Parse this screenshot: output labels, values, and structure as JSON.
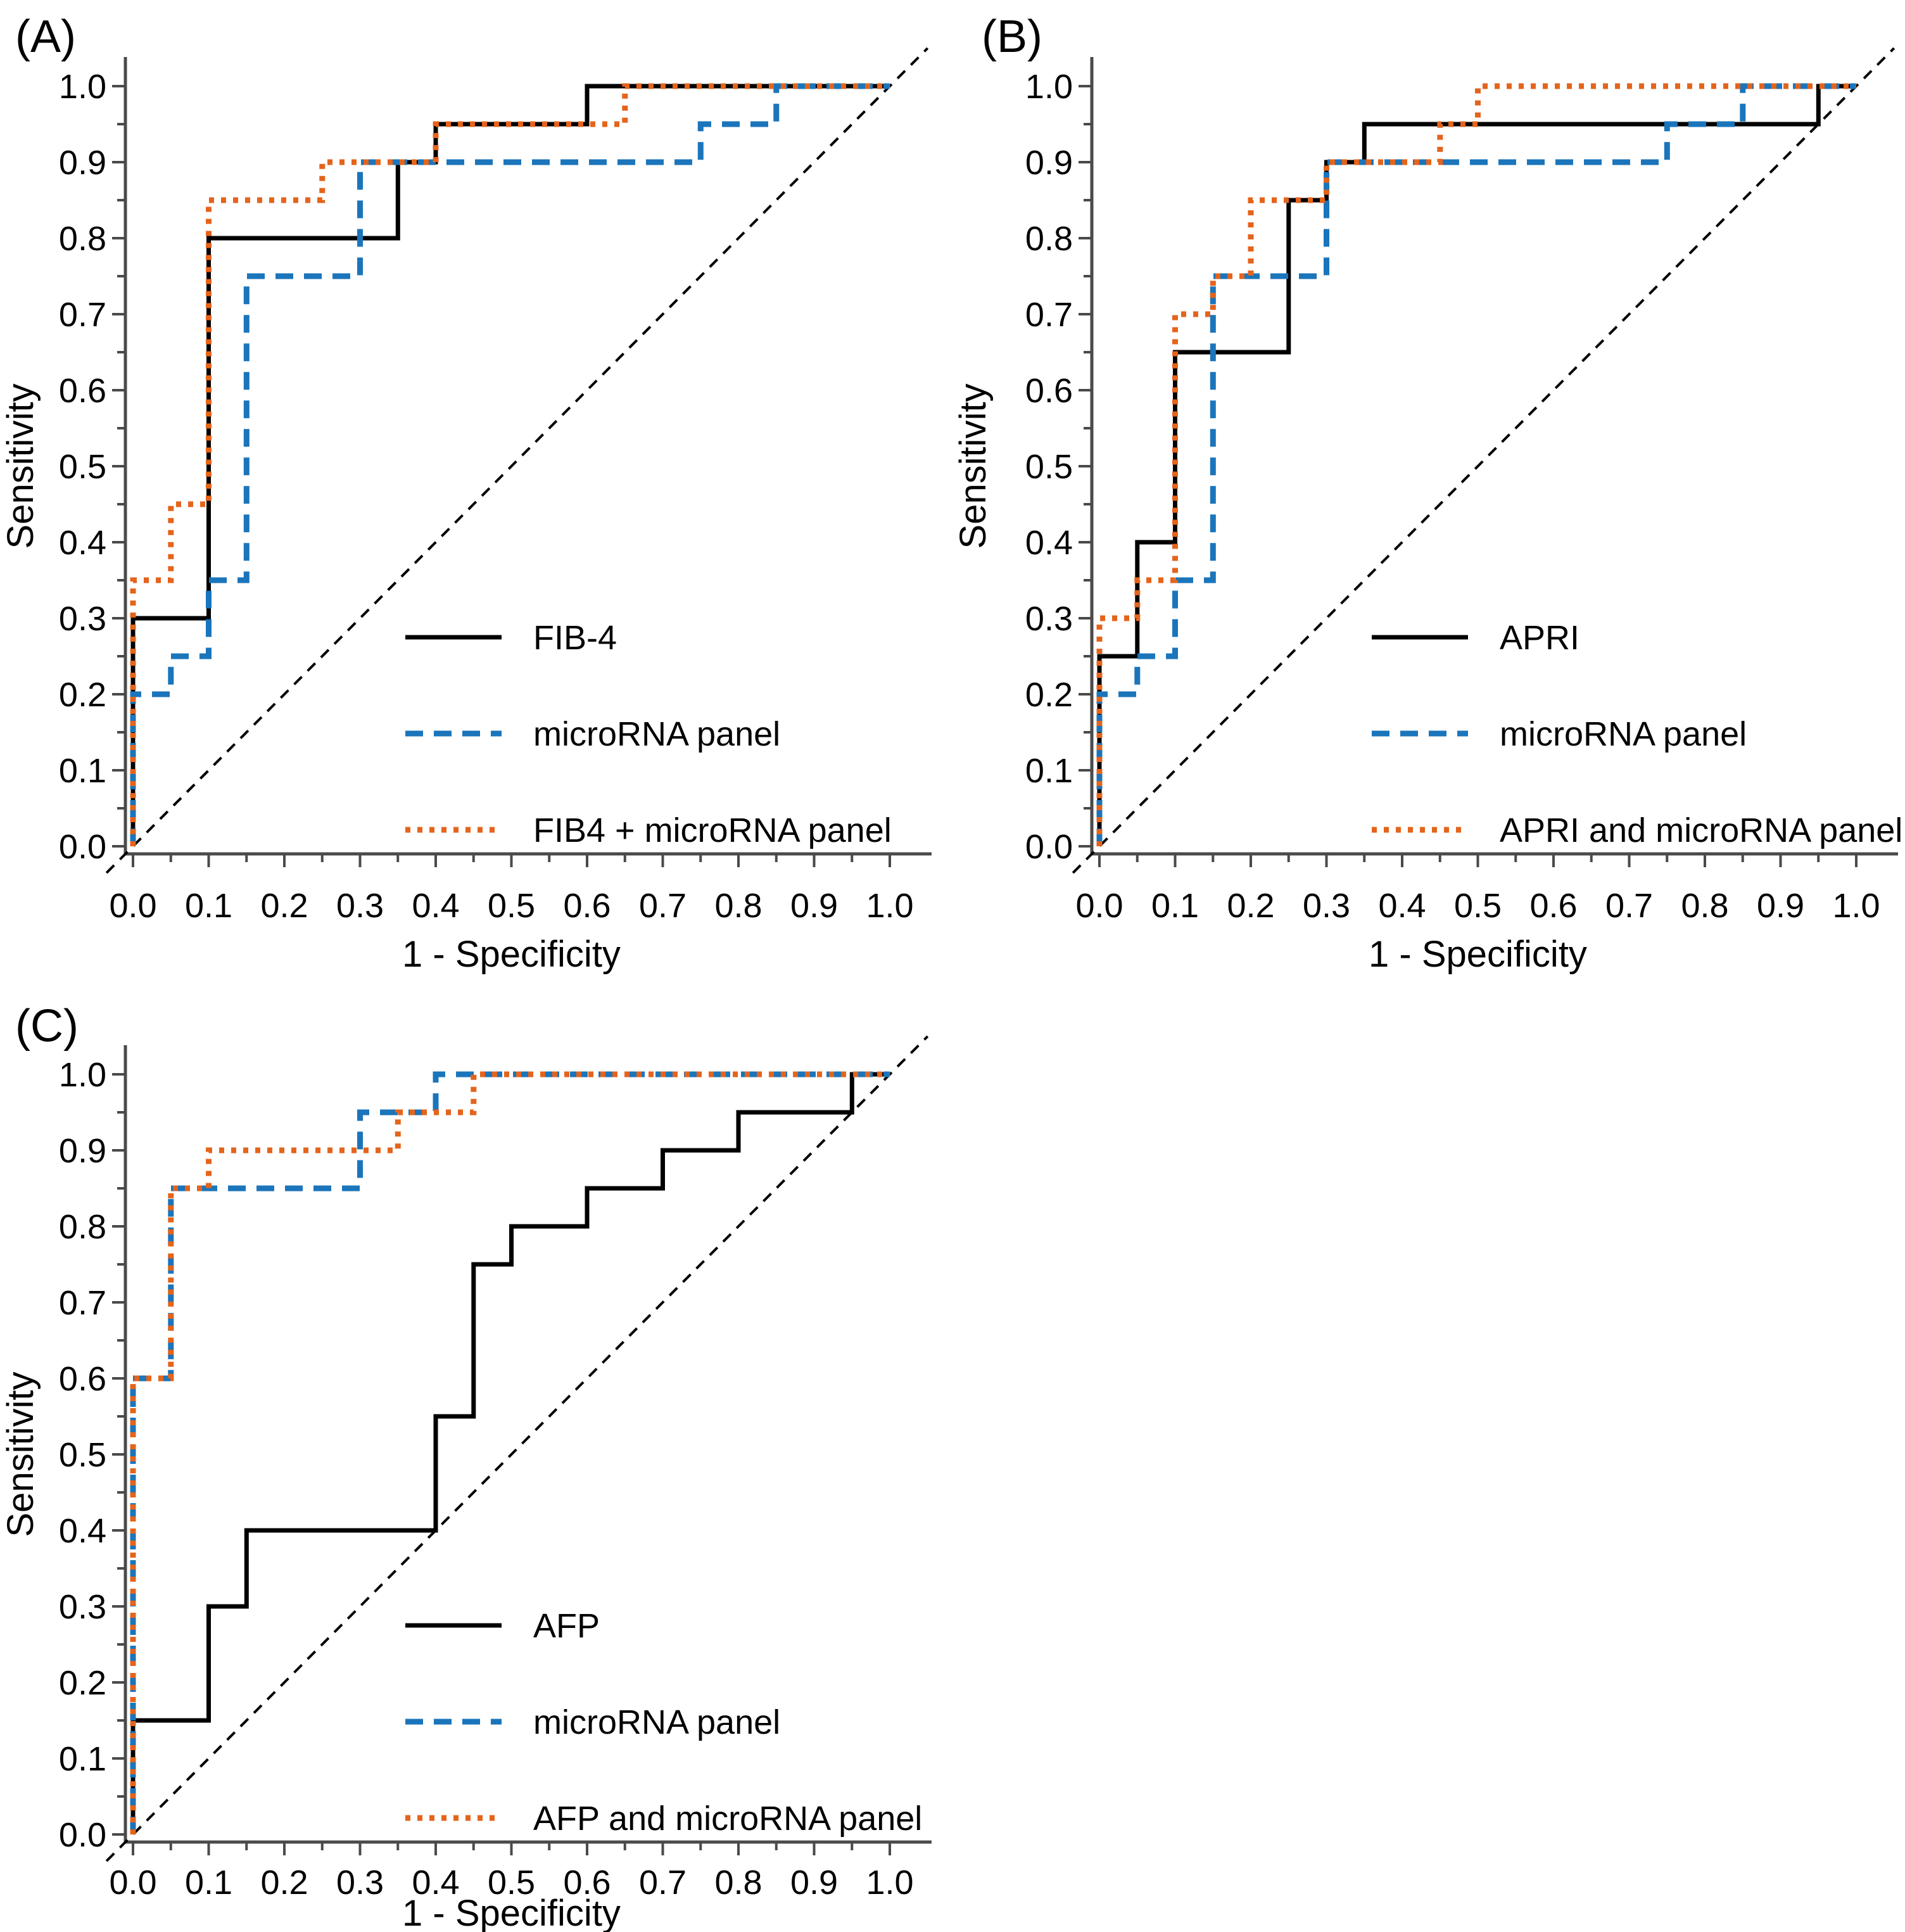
{
  "figure": {
    "background": "#ffffff",
    "axis_color": "#4a4a4a",
    "text_color": "#000000",
    "reference_line": {
      "type": "diagonal",
      "style": "dashed",
      "color": "#000000"
    }
  },
  "chart_data": [
    {
      "id": "A",
      "panel_label": "(A)",
      "type": "line",
      "subtype": "roc-step",
      "xlabel": "1 - Specificity",
      "ylabel": "Sensitivity",
      "xlim": [
        0.0,
        1.0
      ],
      "ylim": [
        0.0,
        1.0
      ],
      "xtick_labels": [
        "0.0",
        "0.1",
        "0.2",
        "0.3",
        "0.4",
        "0.5",
        "0.6",
        "0.7",
        "0.8",
        "0.9",
        "1.0"
      ],
      "ytick_labels": [
        "0.0",
        "0.1",
        "0.2",
        "0.3",
        "0.4",
        "0.5",
        "0.6",
        "0.7",
        "0.8",
        "0.9",
        "1.0"
      ],
      "minor_tick_interval": 0.05,
      "grid": false,
      "diagonal_reference_line": true,
      "legend_position": "inside-lower-right",
      "series": [
        {
          "name": "FIB-4",
          "line_style": "solid",
          "color": "#000000",
          "points": [
            [
              0,
              0
            ],
            [
              0,
              0.3
            ],
            [
              0.1,
              0.3
            ],
            [
              0.1,
              0.8
            ],
            [
              0.35,
              0.8
            ],
            [
              0.35,
              0.9
            ],
            [
              0.4,
              0.9
            ],
            [
              0.4,
              0.95
            ],
            [
              0.6,
              0.95
            ],
            [
              0.6,
              1
            ],
            [
              1,
              1
            ]
          ]
        },
        {
          "name": "microRNA panel",
          "line_style": "dashed",
          "color": "#1B75BB",
          "points": [
            [
              0,
              0
            ],
            [
              0,
              0.2
            ],
            [
              0.05,
              0.2
            ],
            [
              0.05,
              0.25
            ],
            [
              0.1,
              0.25
            ],
            [
              0.1,
              0.35
            ],
            [
              0.15,
              0.35
            ],
            [
              0.15,
              0.75
            ],
            [
              0.3,
              0.75
            ],
            [
              0.3,
              0.9
            ],
            [
              0.75,
              0.9
            ],
            [
              0.75,
              0.95
            ],
            [
              0.85,
              0.95
            ],
            [
              0.85,
              1
            ],
            [
              1,
              1
            ]
          ]
        },
        {
          "name": "FIB4 + microRNA panel",
          "line_style": "dotted",
          "color": "#E4641C",
          "points": [
            [
              0,
              0
            ],
            [
              0,
              0.35
            ],
            [
              0.05,
              0.35
            ],
            [
              0.05,
              0.45
            ],
            [
              0.1,
              0.45
            ],
            [
              0.1,
              0.85
            ],
            [
              0.25,
              0.85
            ],
            [
              0.25,
              0.9
            ],
            [
              0.4,
              0.9
            ],
            [
              0.4,
              0.95
            ],
            [
              0.65,
              0.95
            ],
            [
              0.65,
              1
            ],
            [
              1,
              1
            ]
          ]
        }
      ]
    },
    {
      "id": "B",
      "panel_label": "(B)",
      "type": "line",
      "subtype": "roc-step",
      "xlabel": "1 - Specificity",
      "ylabel": "Sensitivity",
      "xlim": [
        0.0,
        1.0
      ],
      "ylim": [
        0.0,
        1.0
      ],
      "xtick_labels": [
        "0.0",
        "0.1",
        "0.2",
        "0.3",
        "0.4",
        "0.5",
        "0.6",
        "0.7",
        "0.8",
        "0.9",
        "1.0"
      ],
      "ytick_labels": [
        "0.0",
        "0.1",
        "0.2",
        "0.3",
        "0.4",
        "0.5",
        "0.6",
        "0.7",
        "0.8",
        "0.9",
        "1.0"
      ],
      "minor_tick_interval": 0.05,
      "grid": false,
      "diagonal_reference_line": true,
      "legend_position": "inside-lower-right",
      "series": [
        {
          "name": "APRI",
          "line_style": "solid",
          "color": "#000000",
          "points": [
            [
              0,
              0
            ],
            [
              0,
              0.25
            ],
            [
              0.05,
              0.25
            ],
            [
              0.05,
              0.4
            ],
            [
              0.1,
              0.4
            ],
            [
              0.1,
              0.65
            ],
            [
              0.25,
              0.65
            ],
            [
              0.25,
              0.85
            ],
            [
              0.3,
              0.85
            ],
            [
              0.3,
              0.9
            ],
            [
              0.35,
              0.9
            ],
            [
              0.35,
              0.95
            ],
            [
              0.95,
              0.95
            ],
            [
              0.95,
              1
            ],
            [
              1,
              1
            ]
          ]
        },
        {
          "name": "microRNA panel",
          "line_style": "dashed",
          "color": "#1B75BB",
          "points": [
            [
              0,
              0
            ],
            [
              0,
              0.2
            ],
            [
              0.05,
              0.2
            ],
            [
              0.05,
              0.25
            ],
            [
              0.1,
              0.25
            ],
            [
              0.1,
              0.35
            ],
            [
              0.15,
              0.35
            ],
            [
              0.15,
              0.75
            ],
            [
              0.3,
              0.75
            ],
            [
              0.3,
              0.9
            ],
            [
              0.75,
              0.9
            ],
            [
              0.75,
              0.95
            ],
            [
              0.85,
              0.95
            ],
            [
              0.85,
              1
            ],
            [
              1,
              1
            ]
          ]
        },
        {
          "name": "APRI and microRNA panel",
          "line_style": "dotted",
          "color": "#E4641C",
          "points": [
            [
              0,
              0
            ],
            [
              0,
              0.3
            ],
            [
              0.05,
              0.3
            ],
            [
              0.05,
              0.35
            ],
            [
              0.1,
              0.35
            ],
            [
              0.1,
              0.7
            ],
            [
              0.15,
              0.7
            ],
            [
              0.15,
              0.75
            ],
            [
              0.2,
              0.75
            ],
            [
              0.2,
              0.85
            ],
            [
              0.3,
              0.85
            ],
            [
              0.3,
              0.9
            ],
            [
              0.45,
              0.9
            ],
            [
              0.45,
              0.95
            ],
            [
              0.5,
              0.95
            ],
            [
              0.5,
              1
            ],
            [
              1,
              1
            ]
          ]
        }
      ]
    },
    {
      "id": "C",
      "panel_label": "(C)",
      "type": "line",
      "subtype": "roc-step",
      "xlabel": "1 - Specificity",
      "ylabel": "Sensitivity",
      "xlim": [
        0.0,
        1.0
      ],
      "ylim": [
        0.0,
        1.0
      ],
      "xtick_labels": [
        "0.0",
        "0.1",
        "0.2",
        "0.3",
        "0.4",
        "0.5",
        "0.6",
        "0.7",
        "0.8",
        "0.9",
        "1.0"
      ],
      "ytick_labels": [
        "0.0",
        "0.1",
        "0.2",
        "0.3",
        "0.4",
        "0.5",
        "0.6",
        "0.7",
        "0.8",
        "0.9",
        "1.0"
      ],
      "minor_tick_interval": 0.05,
      "grid": false,
      "diagonal_reference_line": true,
      "legend_position": "inside-lower-right",
      "series": [
        {
          "name": "AFP",
          "line_style": "solid",
          "color": "#000000",
          "points": [
            [
              0,
              0
            ],
            [
              0,
              0.15
            ],
            [
              0.1,
              0.15
            ],
            [
              0.1,
              0.3
            ],
            [
              0.15,
              0.3
            ],
            [
              0.15,
              0.4
            ],
            [
              0.4,
              0.4
            ],
            [
              0.4,
              0.55
            ],
            [
              0.45,
              0.55
            ],
            [
              0.45,
              0.75
            ],
            [
              0.5,
              0.75
            ],
            [
              0.5,
              0.8
            ],
            [
              0.6,
              0.8
            ],
            [
              0.6,
              0.85
            ],
            [
              0.7,
              0.85
            ],
            [
              0.7,
              0.9
            ],
            [
              0.8,
              0.9
            ],
            [
              0.8,
              0.95
            ],
            [
              0.95,
              0.95
            ],
            [
              0.95,
              1
            ],
            [
              1,
              1
            ]
          ]
        },
        {
          "name": "microRNA panel",
          "line_style": "dashed",
          "color": "#1B75BB",
          "points": [
            [
              0,
              0
            ],
            [
              0,
              0.6
            ],
            [
              0.05,
              0.6
            ],
            [
              0.05,
              0.85
            ],
            [
              0.3,
              0.85
            ],
            [
              0.3,
              0.95
            ],
            [
              0.4,
              0.95
            ],
            [
              0.4,
              1
            ],
            [
              1,
              1
            ]
          ]
        },
        {
          "name": "AFP and microRNA panel",
          "line_style": "dotted",
          "color": "#E4641C",
          "points": [
            [
              0,
              0
            ],
            [
              0,
              0.6
            ],
            [
              0.05,
              0.6
            ],
            [
              0.05,
              0.85
            ],
            [
              0.1,
              0.85
            ],
            [
              0.1,
              0.9
            ],
            [
              0.35,
              0.9
            ],
            [
              0.35,
              0.95
            ],
            [
              0.45,
              0.95
            ],
            [
              0.45,
              1
            ],
            [
              1,
              1
            ]
          ]
        }
      ]
    }
  ]
}
